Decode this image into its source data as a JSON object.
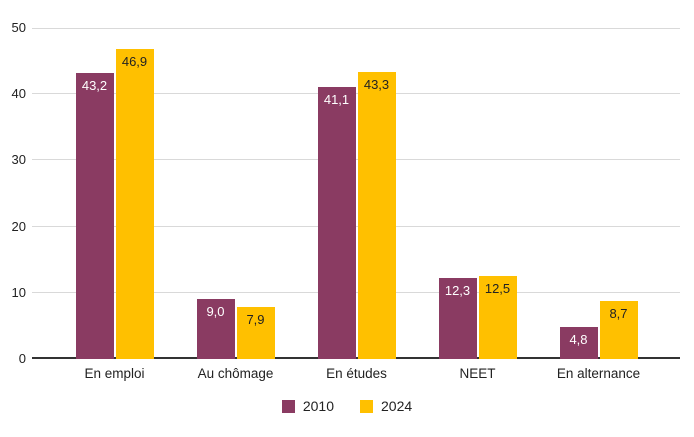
{
  "chart_data": {
    "type": "bar",
    "categories": [
      "En emploi",
      "Au chômage",
      "En études",
      "NEET",
      "En alternance"
    ],
    "series": [
      {
        "name": "2010",
        "values": [
          43.2,
          9.0,
          41.1,
          12.3,
          4.8
        ],
        "value_labels": [
          "43,2",
          "9,0",
          "41,1",
          "12,3",
          "4,8"
        ],
        "color": "#8A3B62",
        "value_label_color": "#FFFFFF"
      },
      {
        "name": "2024",
        "values": [
          46.9,
          7.9,
          43.3,
          12.5,
          8.7
        ],
        "value_labels": [
          "46,9",
          "7,9",
          "43,3",
          "12,5",
          "8,7"
        ],
        "color": "#FFC000",
        "value_label_color": "#222222"
      }
    ],
    "ylim": [
      0,
      50
    ],
    "yticks": [
      0,
      10,
      20,
      30,
      40,
      50
    ],
    "grid": true,
    "legend_position": "bottom",
    "legend": [
      "2010",
      "2024"
    ]
  },
  "style": {
    "background": "#FFFFFF",
    "gridline_color": "#D9D9D9",
    "axis_line_color": "#333333",
    "text_color": "#222222"
  }
}
